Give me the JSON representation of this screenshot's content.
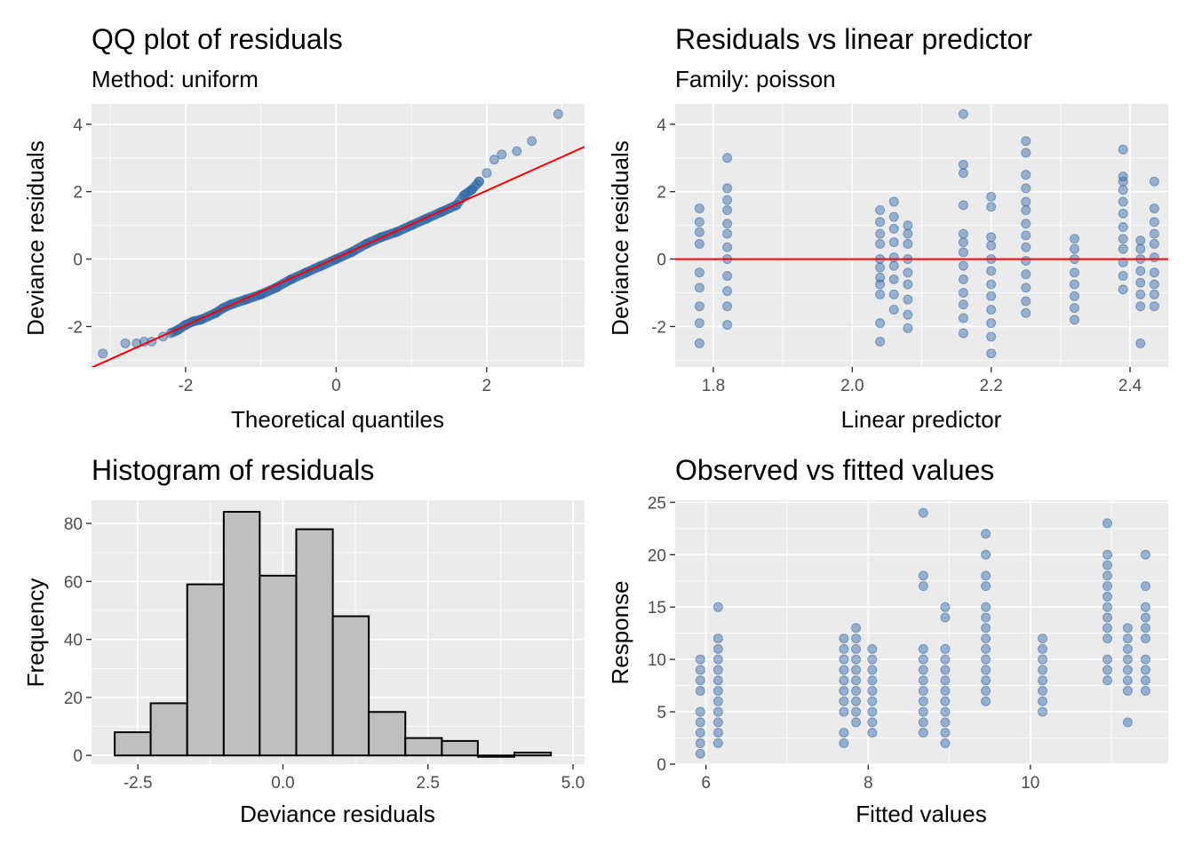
{
  "chart_data": [
    {
      "id": "qq",
      "type": "scatter",
      "title": "QQ plot of residuals",
      "subtitle": "Method: uniform",
      "xlabel": "Theoretical quantiles",
      "ylabel": "Deviance residuals",
      "xlim": [
        -3.25,
        3.3
      ],
      "ylim": [
        -3.2,
        4.6
      ],
      "xticks": [
        -2,
        0,
        2
      ],
      "xtick_labels": [
        "-2",
        "0",
        "2"
      ],
      "yticks": [
        -2,
        0,
        2,
        4
      ],
      "ytick_labels": [
        "-2",
        "0",
        "2",
        "4"
      ],
      "reference_line": {
        "intercept": 0.03,
        "slope": 1.0,
        "color": "#ff0000"
      },
      "n": 400,
      "points": {
        "x": [
          -3.1,
          -2.8,
          -2.65,
          -2.55,
          -2.45,
          -2.3,
          -2.1,
          -2.0,
          -1.9,
          -1.8,
          -1.6,
          -1.5,
          -1.4,
          -1.2,
          -1.0,
          -0.8,
          -0.6,
          -0.4,
          -0.2,
          0.0,
          0.2,
          0.4,
          0.6,
          0.8,
          1.0,
          1.2,
          1.4,
          1.6,
          1.7,
          1.8,
          1.9,
          2.0,
          2.1,
          2.2,
          2.4,
          2.6,
          2.95
        ],
        "y": [
          -2.8,
          -2.5,
          -2.5,
          -2.45,
          -2.45,
          -2.3,
          -2.1,
          -1.95,
          -1.85,
          -1.8,
          -1.6,
          -1.45,
          -1.35,
          -1.2,
          -1.05,
          -0.85,
          -0.6,
          -0.4,
          -0.2,
          0.0,
          0.2,
          0.45,
          0.65,
          0.8,
          1.0,
          1.2,
          1.4,
          1.6,
          1.9,
          2.05,
          2.3,
          2.55,
          2.95,
          3.1,
          3.2,
          3.5,
          4.3
        ]
      },
      "point_color": "#2e66a6"
    },
    {
      "id": "resid-vs-pred",
      "type": "scatter",
      "title": "Residuals vs linear predictor",
      "subtitle": "Family: poisson",
      "xlabel": "Linear predictor",
      "ylabel": "Deviance residuals",
      "xlim": [
        1.745,
        2.455
      ],
      "ylim": [
        -3.2,
        4.6
      ],
      "xticks": [
        1.8,
        2.0,
        2.2,
        2.4
      ],
      "xtick_labels": [
        "1.8",
        "2.0",
        "2.2",
        "2.4"
      ],
      "yticks": [
        -2,
        0,
        2,
        4
      ],
      "ytick_labels": [
        "-2",
        "0",
        "2",
        "4"
      ],
      "reference_line": {
        "y": 0,
        "color": "#ff0000"
      },
      "point_color": "#2e66a6",
      "groups": [
        {
          "x": 1.78,
          "y": [
            -2.5,
            -1.9,
            -1.4,
            -0.85,
            -0.4,
            0.45,
            0.8,
            1.1,
            1.5
          ]
        },
        {
          "x": 1.82,
          "y": [
            -1.95,
            -1.4,
            -0.95,
            -0.5,
            0.0,
            0.35,
            0.75,
            1.05,
            1.45,
            1.75,
            2.1,
            3.0
          ]
        },
        {
          "x": 2.04,
          "y": [
            -2.45,
            -1.9,
            -1.05,
            -0.75,
            -0.55,
            -0.25,
            0.0,
            0.45,
            0.75,
            1.1,
            1.45
          ]
        },
        {
          "x": 2.06,
          "y": [
            -1.5,
            -1.05,
            -0.6,
            -0.2,
            0.05,
            0.5,
            0.9,
            1.25,
            1.7
          ]
        },
        {
          "x": 2.08,
          "y": [
            -2.05,
            -1.65,
            -1.2,
            -0.75,
            -0.4,
            0.0,
            0.45,
            0.75,
            1.0
          ]
        },
        {
          "x": 2.16,
          "y": [
            -2.2,
            -1.75,
            -1.35,
            -1.0,
            -0.6,
            -0.2,
            0.2,
            0.5,
            0.75,
            1.6,
            2.55,
            2.8,
            4.3
          ]
        },
        {
          "x": 2.2,
          "y": [
            -2.8,
            -2.3,
            -1.9,
            -1.5,
            -1.1,
            -0.75,
            -0.35,
            0.0,
            0.4,
            0.65,
            1.55,
            1.85
          ]
        },
        {
          "x": 2.25,
          "y": [
            -1.6,
            -1.25,
            -0.85,
            -0.45,
            -0.05,
            0.35,
            0.7,
            1.05,
            1.45,
            1.7,
            2.1,
            2.5,
            3.15,
            3.5
          ]
        },
        {
          "x": 2.32,
          "y": [
            -1.8,
            -1.45,
            -1.1,
            -0.75,
            -0.4,
            0.0,
            0.3,
            0.6
          ]
        },
        {
          "x": 2.39,
          "y": [
            -0.9,
            -0.5,
            -0.1,
            0.3,
            0.6,
            0.95,
            1.35,
            1.7,
            2.05,
            2.3,
            2.45,
            3.25
          ]
        },
        {
          "x": 2.415,
          "y": [
            -2.5,
            -1.4,
            -1.05,
            -0.7,
            -0.35,
            0.0,
            0.3,
            0.55
          ]
        },
        {
          "x": 2.435,
          "y": [
            -1.4,
            -1.05,
            -0.75,
            -0.4,
            0.05,
            0.45,
            0.75,
            1.1,
            1.5,
            2.3
          ]
        }
      ]
    },
    {
      "id": "histogram",
      "type": "bar",
      "title": "Histogram of residuals",
      "xlabel": "Deviance residuals",
      "ylabel": "Frequency",
      "xlim": [
        -3.3,
        5.2
      ],
      "ylim": [
        -3,
        88
      ],
      "xticks": [
        -2.5,
        0.0,
        2.5,
        5.0
      ],
      "xtick_labels": [
        "-2.5",
        "0.0",
        "2.5",
        "5.0"
      ],
      "yticks": [
        0,
        20,
        40,
        60,
        80
      ],
      "ytick_labels": [
        "0",
        "20",
        "40",
        "60",
        "80"
      ],
      "bins": [
        {
          "x0": -2.9,
          "x1": -2.28,
          "count": 8
        },
        {
          "x0": -2.28,
          "x1": -1.65,
          "count": 18
        },
        {
          "x0": -1.65,
          "x1": -1.02,
          "count": 59
        },
        {
          "x0": -1.02,
          "x1": -0.4,
          "count": 84
        },
        {
          "x0": -0.4,
          "x1": 0.23,
          "count": 62
        },
        {
          "x0": 0.23,
          "x1": 0.86,
          "count": 78
        },
        {
          "x0": 0.86,
          "x1": 1.48,
          "count": 48
        },
        {
          "x0": 1.48,
          "x1": 2.11,
          "count": 15
        },
        {
          "x0": 2.11,
          "x1": 2.74,
          "count": 6
        },
        {
          "x0": 2.74,
          "x1": 3.36,
          "count": 5
        },
        {
          "x0": 3.36,
          "x1": 3.99,
          "count": 0
        },
        {
          "x0": 3.99,
          "x1": 4.62,
          "count": 1
        }
      ],
      "bar_fill": "#bfbfbf",
      "bar_stroke": "#000000"
    },
    {
      "id": "obs-vs-fitted",
      "type": "scatter",
      "title": "Observed vs fitted values",
      "xlabel": "Fitted values",
      "ylabel": "Response",
      "xlim": [
        5.62,
        11.7
      ],
      "ylim": [
        0,
        25.2
      ],
      "xticks": [
        6,
        8,
        10
      ],
      "xtick_labels": [
        "6",
        "8",
        "10"
      ],
      "yticks": [
        0,
        5,
        10,
        15,
        20,
        25
      ],
      "ytick_labels": [
        "0",
        "5",
        "10",
        "15",
        "20",
        "25"
      ],
      "point_color": "#2e66a6",
      "groups": [
        {
          "x": 5.93,
          "y": [
            1,
            2,
            3,
            4,
            5,
            7,
            8,
            9,
            10
          ]
        },
        {
          "x": 6.15,
          "y": [
            2,
            3,
            4,
            5,
            6,
            7,
            8,
            9,
            10,
            11,
            12,
            15
          ]
        },
        {
          "x": 7.7,
          "y": [
            2,
            3,
            5,
            6,
            7,
            8,
            9,
            10,
            11,
            12
          ]
        },
        {
          "x": 7.85,
          "y": [
            4,
            5,
            6,
            7,
            8,
            9,
            10,
            11,
            12,
            13
          ]
        },
        {
          "x": 8.05,
          "y": [
            3,
            4,
            5,
            6,
            7,
            8,
            9,
            10,
            11
          ]
        },
        {
          "x": 8.68,
          "y": [
            3,
            4,
            5,
            6,
            7,
            8,
            9,
            10,
            11,
            17,
            18,
            24
          ]
        },
        {
          "x": 8.95,
          "y": [
            2,
            3,
            4,
            5,
            6,
            7,
            8,
            9,
            10,
            11,
            14,
            15
          ]
        },
        {
          "x": 9.45,
          "y": [
            6,
            7,
            8,
            9,
            10,
            11,
            12,
            13,
            14,
            15,
            17,
            18,
            20,
            22
          ]
        },
        {
          "x": 10.15,
          "y": [
            5,
            6,
            7,
            8,
            9,
            10,
            11,
            12
          ]
        },
        {
          "x": 10.95,
          "y": [
            8,
            9,
            10,
            12,
            13,
            14,
            15,
            16,
            17,
            18,
            19,
            20,
            23
          ]
        },
        {
          "x": 11.2,
          "y": [
            4,
            7,
            8,
            9,
            10,
            11,
            12,
            13
          ]
        },
        {
          "x": 11.42,
          "y": [
            7,
            8,
            9,
            10,
            12,
            13,
            14,
            15,
            17,
            20
          ]
        }
      ]
    }
  ]
}
